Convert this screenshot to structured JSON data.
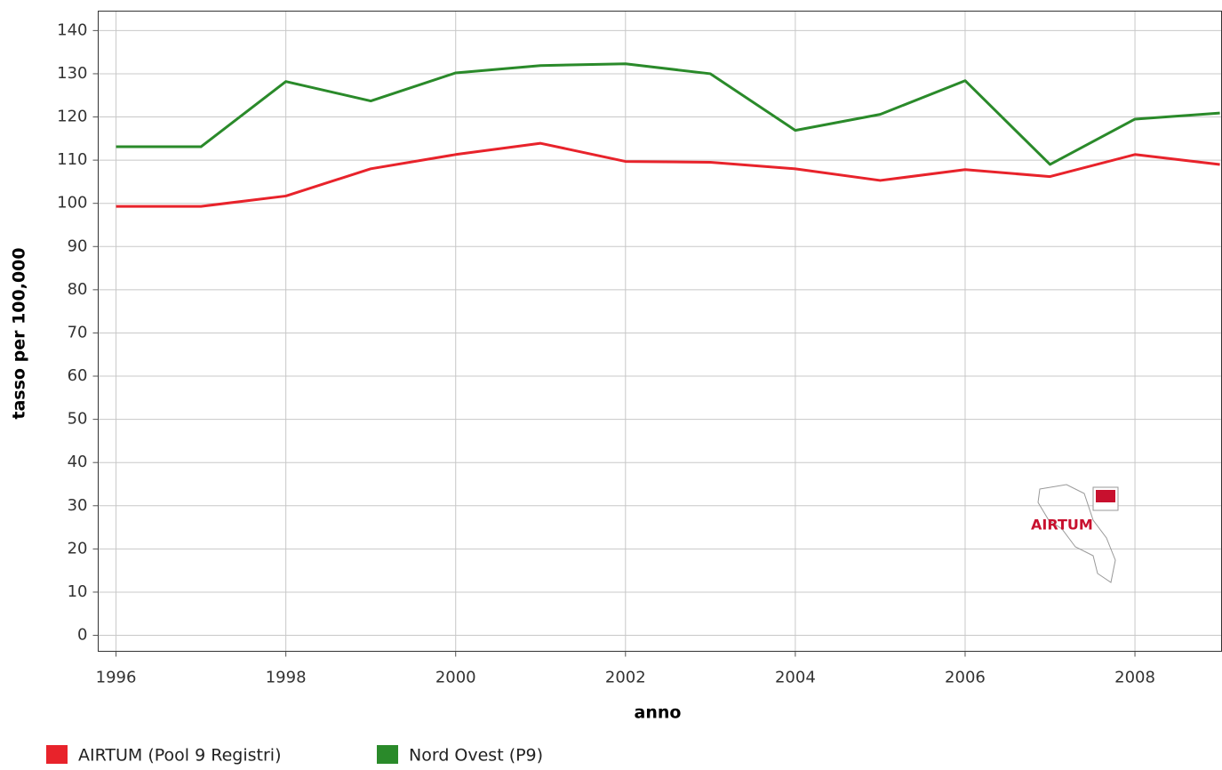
{
  "chart_data": {
    "type": "line",
    "x_label": "anno",
    "y_label": "tasso per 100,000",
    "x": [
      1996,
      1997,
      1998,
      1999,
      2000,
      2001,
      2002,
      2003,
      2004,
      2005,
      2006,
      2007,
      2008,
      2009
    ],
    "series": [
      {
        "name": "AIRTUM (Pool 9 Registri)",
        "color": "#e8232b",
        "values": [
          99.3,
          99.3,
          101.7,
          108,
          111.3,
          113.9,
          109.7,
          109.5,
          108,
          105.3,
          107.8,
          106.2,
          111.3,
          109
        ]
      },
      {
        "name": "Nord Ovest (P9)",
        "color": "#2a8a2a",
        "values": [
          113.1,
          113.1,
          128.2,
          123.7,
          130.2,
          131.9,
          132.3,
          130,
          116.9,
          120.6,
          128.4,
          109,
          119.5,
          120.9
        ]
      }
    ],
    "xlim": [
      1995.79,
      2009.02
    ],
    "ylim": [
      -3.7,
      144.5
    ],
    "xticks": [
      1996,
      1998,
      2000,
      2002,
      2004,
      2006,
      2008
    ],
    "yticks": [
      0,
      10,
      20,
      30,
      40,
      50,
      60,
      70,
      80,
      90,
      100,
      110,
      120,
      130,
      140
    ],
    "grid": true,
    "legend": "bottom-left",
    "watermark": "AIRTUM"
  }
}
